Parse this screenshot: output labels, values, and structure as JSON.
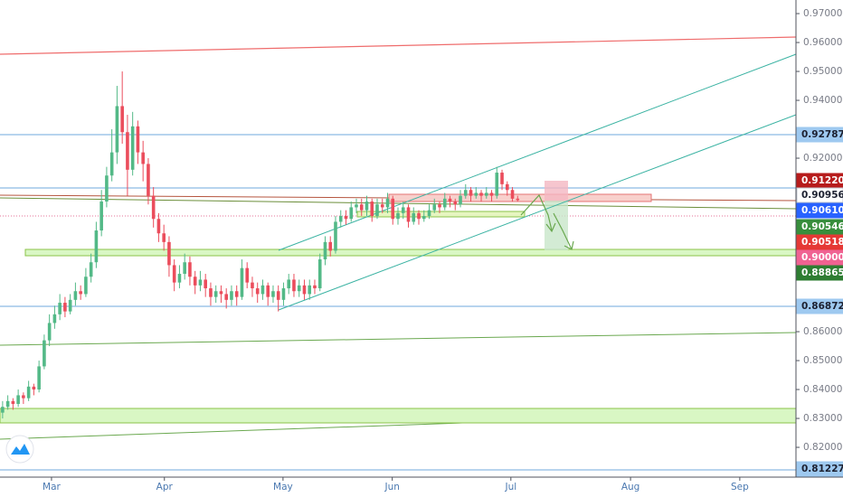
{
  "chart_data": {
    "type": "candlestick",
    "up_color": "#53b987",
    "down_color": "#eb4d5c",
    "xlim": [
      -0.5,
      152.5
    ],
    "xticks": [
      {
        "value": 9.4,
        "label": "Mar"
      },
      {
        "value": 31.1,
        "label": "Apr"
      },
      {
        "value": 53.9,
        "label": "May"
      },
      {
        "value": 74.9,
        "label": "Jun"
      },
      {
        "value": 97.7,
        "label": "Jul"
      },
      {
        "value": 120.7,
        "label": "Aug"
      },
      {
        "value": 141.7,
        "label": "Sep"
      }
    ],
    "ylim": [
      0.8097,
      0.9747
    ],
    "yticks": [
      {
        "value": 0.97,
        "label": "0.97000"
      },
      {
        "value": 0.96,
        "label": "0.96000"
      },
      {
        "value": 0.95,
        "label": "0.95000"
      },
      {
        "value": 0.94,
        "label": "0.94000"
      },
      {
        "value": 0.92,
        "label": "0.92000"
      },
      {
        "value": 0.86,
        "label": "0.86000"
      },
      {
        "value": 0.85,
        "label": "0.85000"
      },
      {
        "value": 0.84,
        "label": "0.84000"
      },
      {
        "value": 0.83,
        "label": "0.83000"
      },
      {
        "value": 0.82,
        "label": "0.82000"
      }
    ],
    "price_levels": [
      {
        "value": 0.92787,
        "color": "#9ec9f0",
        "text_color": "#1c2030"
      },
      {
        "value": 0.9122,
        "label": "0.91220",
        "color": "#b71c1c",
        "text_color": "#ffffff"
      },
      {
        "value": 0.90956,
        "color": "#ffffff",
        "text_color": "#1c2030"
      },
      {
        "value": 0.9061,
        "label": "0.90610",
        "color": "#2962ff",
        "text_color": "#ffffff"
      },
      {
        "value": 0.90546,
        "color": "#388e3c",
        "text_color": "#ffffff"
      },
      {
        "value": 0.90518,
        "color": "#e53935",
        "text_color": "#ffffff"
      },
      {
        "value": 0.9,
        "label": "0.90000",
        "color": "#f06292",
        "text_color": "#ffffff"
      },
      {
        "value": 0.88865,
        "color": "#2e7d32",
        "text_color": "#ffffff"
      },
      {
        "value": 0.86872,
        "color": "#9ec9f0",
        "text_color": "#1c2030"
      },
      {
        "value": 0.81227,
        "color": "#9ec9f0",
        "text_color": "#1c2030"
      }
    ],
    "candles": [
      [
        0.832,
        0.836,
        0.83,
        0.834
      ],
      [
        0.834,
        0.838,
        0.833,
        0.836
      ],
      [
        0.836,
        0.837,
        0.833,
        0.835
      ],
      [
        0.835,
        0.84,
        0.834,
        0.838
      ],
      [
        0.838,
        0.839,
        0.835,
        0.837
      ],
      [
        0.837,
        0.843,
        0.836,
        0.841
      ],
      [
        0.841,
        0.842,
        0.838,
        0.84
      ],
      [
        0.84,
        0.85,
        0.839,
        0.848
      ],
      [
        0.848,
        0.859,
        0.847,
        0.857
      ],
      [
        0.857,
        0.866,
        0.855,
        0.863
      ],
      [
        0.863,
        0.869,
        0.861,
        0.866
      ],
      [
        0.866,
        0.873,
        0.864,
        0.87
      ],
      [
        0.87,
        0.872,
        0.865,
        0.867
      ],
      [
        0.867,
        0.873,
        0.866,
        0.871
      ],
      [
        0.871,
        0.877,
        0.869,
        0.874
      ],
      [
        0.874,
        0.876,
        0.871,
        0.873
      ],
      [
        0.873,
        0.882,
        0.872,
        0.879
      ],
      [
        0.879,
        0.887,
        0.877,
        0.884
      ],
      [
        0.884,
        0.898,
        0.882,
        0.895
      ],
      [
        0.895,
        0.909,
        0.893,
        0.905
      ],
      [
        0.905,
        0.917,
        0.903,
        0.914
      ],
      [
        0.914,
        0.93,
        0.912,
        0.922
      ],
      [
        0.922,
        0.945,
        0.918,
        0.938
      ],
      [
        0.938,
        0.95,
        0.925,
        0.929
      ],
      [
        0.929,
        0.935,
        0.907,
        0.916
      ],
      [
        0.916,
        0.936,
        0.914,
        0.931
      ],
      [
        0.931,
        0.933,
        0.918,
        0.922
      ],
      [
        0.922,
        0.926,
        0.912,
        0.918
      ],
      [
        0.918,
        0.92,
        0.904,
        0.907
      ],
      [
        0.907,
        0.91,
        0.896,
        0.899
      ],
      [
        0.899,
        0.901,
        0.891,
        0.894
      ],
      [
        0.894,
        0.897,
        0.888,
        0.891
      ],
      [
        0.891,
        0.893,
        0.879,
        0.883
      ],
      [
        0.883,
        0.885,
        0.874,
        0.877
      ],
      [
        0.877,
        0.883,
        0.875,
        0.88
      ],
      [
        0.88,
        0.887,
        0.878,
        0.884
      ],
      [
        0.884,
        0.886,
        0.876,
        0.879
      ],
      [
        0.879,
        0.881,
        0.873,
        0.876
      ],
      [
        0.876,
        0.881,
        0.874,
        0.878
      ],
      [
        0.878,
        0.88,
        0.872,
        0.875
      ],
      [
        0.875,
        0.877,
        0.869,
        0.872
      ],
      [
        0.872,
        0.876,
        0.87,
        0.874
      ],
      [
        0.874,
        0.876,
        0.87,
        0.873
      ],
      [
        0.873,
        0.875,
        0.868,
        0.871
      ],
      [
        0.871,
        0.876,
        0.869,
        0.874
      ],
      [
        0.874,
        0.876,
        0.869,
        0.872
      ],
      [
        0.872,
        0.885,
        0.871,
        0.882
      ],
      [
        0.882,
        0.884,
        0.875,
        0.877
      ],
      [
        0.877,
        0.879,
        0.872,
        0.875
      ],
      [
        0.875,
        0.877,
        0.87,
        0.873
      ],
      [
        0.873,
        0.878,
        0.871,
        0.876
      ],
      [
        0.876,
        0.877,
        0.869,
        0.872
      ],
      [
        0.872,
        0.876,
        0.87,
        0.874
      ],
      [
        0.874,
        0.876,
        0.867,
        0.871
      ],
      [
        0.871,
        0.877,
        0.869,
        0.875
      ],
      [
        0.875,
        0.88,
        0.873,
        0.878
      ],
      [
        0.878,
        0.88,
        0.872,
        0.874
      ],
      [
        0.874,
        0.878,
        0.872,
        0.876
      ],
      [
        0.876,
        0.878,
        0.871,
        0.873
      ],
      [
        0.873,
        0.878,
        0.871,
        0.876
      ],
      [
        0.876,
        0.878,
        0.873,
        0.875
      ],
      [
        0.875,
        0.887,
        0.874,
        0.885
      ],
      [
        0.885,
        0.893,
        0.883,
        0.891
      ],
      [
        0.891,
        0.893,
        0.886,
        0.888
      ],
      [
        0.888,
        0.9,
        0.887,
        0.898
      ],
      [
        0.898,
        0.902,
        0.896,
        0.9
      ],
      [
        0.9,
        0.902,
        0.897,
        0.899
      ],
      [
        0.899,
        0.905,
        0.898,
        0.903
      ],
      [
        0.903,
        0.906,
        0.901,
        0.904
      ],
      [
        0.904,
        0.906,
        0.9,
        0.902
      ],
      [
        0.902,
        0.907,
        0.9,
        0.905
      ],
      [
        0.905,
        0.906,
        0.898,
        0.9
      ],
      [
        0.9,
        0.906,
        0.899,
        0.904
      ],
      [
        0.904,
        0.906,
        0.901,
        0.903
      ],
      [
        0.903,
        0.908,
        0.901,
        0.906
      ],
      [
        0.906,
        0.907,
        0.897,
        0.899
      ],
      [
        0.899,
        0.903,
        0.897,
        0.901
      ],
      [
        0.901,
        0.905,
        0.899,
        0.903
      ],
      [
        0.903,
        0.904,
        0.896,
        0.898
      ],
      [
        0.898,
        0.903,
        0.897,
        0.901
      ],
      [
        0.901,
        0.902,
        0.897,
        0.899
      ],
      [
        0.899,
        0.902,
        0.898,
        0.9
      ],
      [
        0.9,
        0.904,
        0.899,
        0.902
      ],
      [
        0.902,
        0.906,
        0.901,
        0.904
      ],
      [
        0.904,
        0.905,
        0.901,
        0.903
      ],
      [
        0.903,
        0.908,
        0.902,
        0.906
      ],
      [
        0.906,
        0.907,
        0.903,
        0.905
      ],
      [
        0.905,
        0.906,
        0.902,
        0.904
      ],
      [
        0.904,
        0.909,
        0.903,
        0.907
      ],
      [
        0.907,
        0.911,
        0.906,
        0.909
      ],
      [
        0.909,
        0.91,
        0.905,
        0.907
      ],
      [
        0.907,
        0.91,
        0.906,
        0.908
      ],
      [
        0.908,
        0.909,
        0.905,
        0.907
      ],
      [
        0.907,
        0.91,
        0.906,
        0.908
      ],
      [
        0.908,
        0.909,
        0.905,
        0.907
      ],
      [
        0.907,
        0.917,
        0.906,
        0.915
      ],
      [
        0.915,
        0.916,
        0.909,
        0.911
      ],
      [
        0.911,
        0.912,
        0.907,
        0.909
      ],
      [
        0.909,
        0.91,
        0.905,
        0.906
      ],
      [
        0.906,
        0.907,
        0.905,
        0.9055
      ]
    ]
  }
}
